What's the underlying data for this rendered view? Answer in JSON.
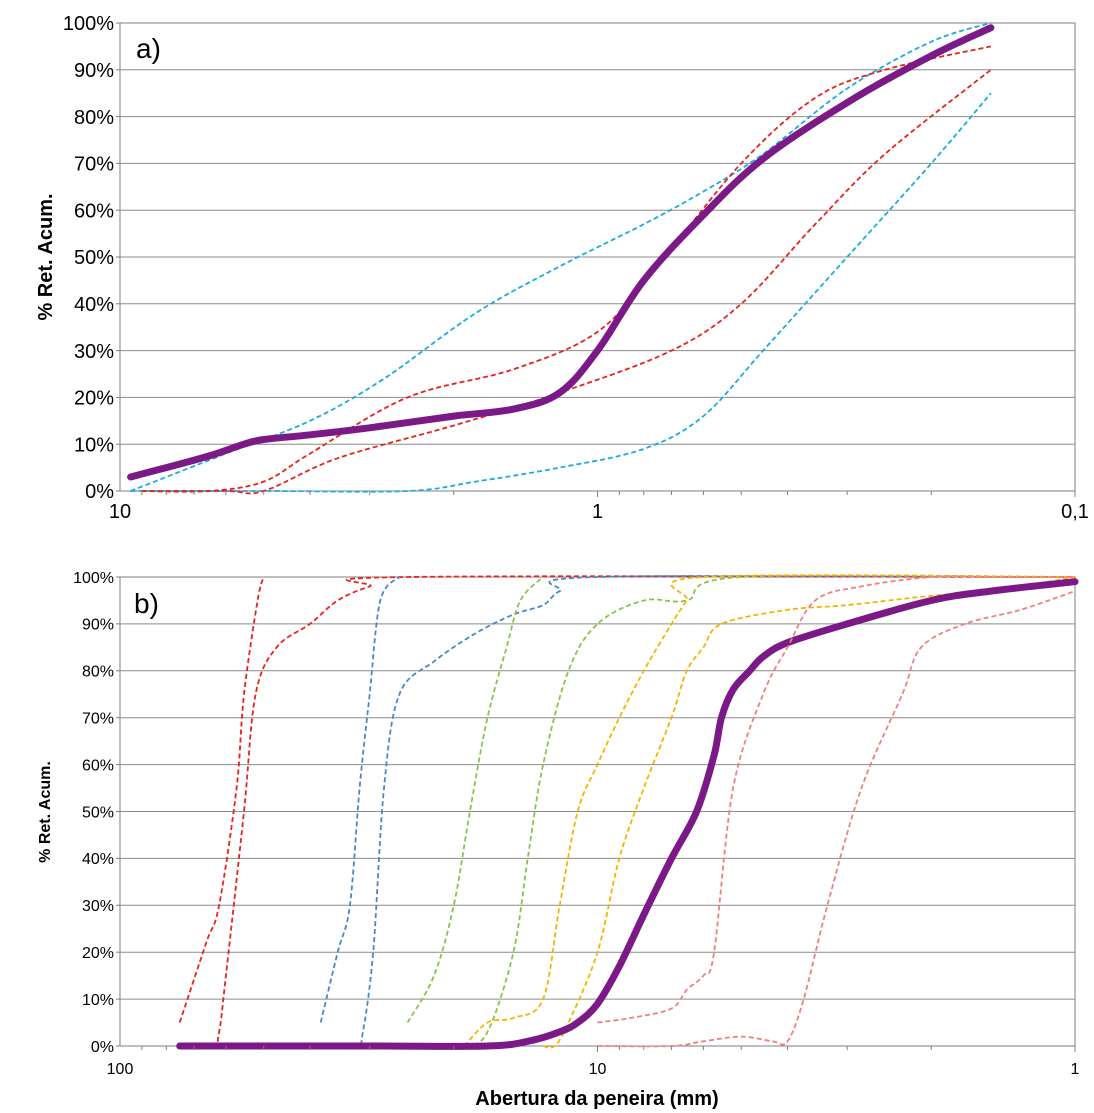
{
  "chart_data": [
    {
      "type": "line",
      "panel_label": "a)",
      "xscale": "log",
      "x_reversed": true,
      "xlim": [
        10,
        0.1
      ],
      "x_ticks": [
        "10",
        "1",
        "0,1"
      ],
      "x_tick_values": [
        10,
        1,
        0.1
      ],
      "xlabel": "",
      "ylabel": "% Ret. Acum.",
      "ylim": [
        0,
        100
      ],
      "y_ticks": [
        "0%",
        "10%",
        "20%",
        "30%",
        "40%",
        "50%",
        "60%",
        "70%",
        "80%",
        "90%",
        "100%"
      ],
      "grid": "horizontal",
      "legend": "none",
      "series": [
        {
          "color": "#1aabe0",
          "style": "dashed",
          "x": [
            9.5,
            6,
            4,
            2.8,
            1.8,
            1.2,
            0.8,
            0.6,
            0.45,
            0.3,
            0.2,
            0.15
          ],
          "y": [
            0,
            8,
            15,
            24,
            38,
            48,
            57,
            64,
            72,
            86,
            96,
            100
          ]
        },
        {
          "color": "#1aabe0",
          "style": "dashed",
          "x": [
            9.5,
            5,
            2.5,
            1.8,
            1.2,
            0.8,
            0.6,
            0.45,
            0.3,
            0.2,
            0.15
          ],
          "y": [
            0,
            0,
            0,
            2,
            5,
            9,
            16,
            30,
            50,
            70,
            85
          ]
        },
        {
          "color": "#e8221c",
          "style": "dashed",
          "x": [
            9,
            6.5,
            5,
            4,
            2.5,
            1.5,
            1,
            0.75,
            0.5,
            0.35,
            0.25,
            0.15
          ],
          "y": [
            0,
            0,
            2,
            8,
            20,
            26,
            34,
            48,
            70,
            84,
            90,
            95
          ]
        },
        {
          "color": "#e8221c",
          "style": "dashed",
          "x": [
            9,
            6,
            5,
            3.5,
            2,
            1.2,
            0.7,
            0.5,
            0.35,
            0.25,
            0.15
          ],
          "y": [
            0,
            0,
            0,
            7,
            14,
            21,
            30,
            40,
            57,
            72,
            90
          ]
        },
        {
          "color": "#7b1a86",
          "style": "solid-thick",
          "x": [
            9.5,
            8,
            6.5,
            5.5,
            5,
            4,
            3,
            2,
            1.5,
            1.2,
            1,
            0.8,
            0.6,
            0.45,
            0.3,
            0.2,
            0.15
          ],
          "y": [
            3,
            5,
            7.5,
            10,
            11,
            12,
            13.5,
            16,
            17.5,
            21,
            30,
            45,
            59,
            71,
            83,
            93,
            99
          ]
        }
      ]
    },
    {
      "type": "line",
      "panel_label": "b)",
      "xscale": "log",
      "x_reversed": true,
      "xlim": [
        100,
        1
      ],
      "x_ticks": [
        "100",
        "10",
        "1"
      ],
      "x_tick_values": [
        100,
        10,
        1
      ],
      "xlabel": "Abertura da peneira (mm)",
      "ylabel": "% Ret. Acum.",
      "ylim": [
        0,
        100
      ],
      "y_ticks": [
        "0%",
        "10%",
        "20%",
        "30%",
        "40%",
        "50%",
        "60%",
        "70%",
        "80%",
        "90%",
        "100%"
      ],
      "grid": "horizontal",
      "legend": "none",
      "series": [
        {
          "color": "#e8221c",
          "style": "dashed",
          "x": [
            75,
            66,
            62,
            57,
            55,
            51.5,
            50
          ],
          "y": [
            5,
            22,
            30,
            55,
            75,
            95,
            100
          ]
        },
        {
          "color": "#e8221c",
          "style": "dashed",
          "x": [
            75,
            64,
            62,
            60,
            55,
            52,
            47,
            40,
            35,
            30,
            25,
            1
          ],
          "y": [
            0,
            0,
            3,
            15,
            50,
            75,
            85,
            90,
            95,
            98,
            100,
            100
          ]
        },
        {
          "color": "#4a86c8",
          "style": "dashed",
          "x": [
            38,
            35,
            33,
            31.5,
            30,
            28.5,
            26
          ],
          "y": [
            5,
            20,
            30,
            55,
            75,
            95,
            100
          ]
        },
        {
          "color": "#4a86c8",
          "style": "dashed",
          "x": [
            38,
            32,
            31,
            29.5,
            28,
            26,
            22,
            18,
            15,
            13,
            12,
            10,
            1
          ],
          "y": [
            0,
            0,
            3,
            20,
            55,
            75,
            82,
            88,
            92,
            94,
            97,
            100,
            100
          ]
        },
        {
          "color": "#8bc34a",
          "style": "dashed",
          "x": [
            25,
            22,
            20,
            18.5,
            17,
            15.5,
            14.5,
            13
          ],
          "y": [
            5,
            15,
            30,
            50,
            70,
            85,
            95,
            100
          ]
        },
        {
          "color": "#8bc34a",
          "style": "dashed",
          "x": [
            22,
            19,
            17,
            15,
            14,
            13,
            11.5,
            10,
            8,
            6.5,
            5,
            1
          ],
          "y": [
            0,
            0,
            3,
            20,
            40,
            60,
            80,
            90,
            95,
            95,
            100,
            100
          ]
        },
        {
          "color": "#f5b400",
          "style": "dashed",
          "x": [
            19,
            17,
            15,
            13,
            12,
            11,
            10,
            9,
            8,
            7,
            6.5,
            6,
            1
          ],
          "y": [
            0,
            5,
            6,
            10,
            30,
            50,
            60,
            70,
            80,
            90,
            95,
            100,
            100
          ]
        },
        {
          "color": "#f5b400",
          "style": "dashed",
          "x": [
            13,
            12.3,
            11.5,
            10,
            9,
            8,
            7,
            6.5,
            6,
            5.5,
            4,
            3,
            2,
            1.5,
            1
          ],
          "y": [
            0,
            0,
            5,
            20,
            40,
            55,
            70,
            80,
            85,
            90,
            93,
            94,
            96,
            97,
            100
          ]
        },
        {
          "color": "#7b1a86",
          "style": "solid-thick",
          "x": [
            75,
            30,
            17,
            14,
            12,
            11,
            10,
            9,
            8,
            7,
            6.2,
            5.7,
            5.5,
            5.2,
            4.8,
            4.5,
            4,
            3,
            2,
            1.5,
            1
          ],
          "y": [
            0,
            0,
            0,
            1,
            3,
            5,
            9,
            17,
            28,
            40,
            50,
            62,
            70,
            76,
            80,
            83,
            86,
            90,
            95,
            97,
            99
          ]
        },
        {
          "color": "#f08080",
          "style": "dashed",
          "x": [
            10,
            8.5,
            7,
            6.5,
            6,
            5.7,
            5.2,
            4.5,
            4,
            3.5,
            2.8,
            2,
            1.5,
            1
          ],
          "y": [
            5,
            6,
            8,
            12,
            15,
            20,
            55,
            75,
            85,
            95,
            98,
            100,
            100,
            100
          ]
        },
        {
          "color": "#f08080",
          "style": "dashed",
          "x": [
            10,
            7,
            6,
            5,
            4.3,
            4,
            3.7,
            3.3,
            2.8,
            2.3,
            2.1,
            1.7,
            1.3,
            1
          ],
          "y": [
            0,
            0,
            1,
            2,
            1,
            1,
            10,
            30,
            55,
            75,
            85,
            90,
            93,
            97
          ]
        }
      ]
    }
  ]
}
